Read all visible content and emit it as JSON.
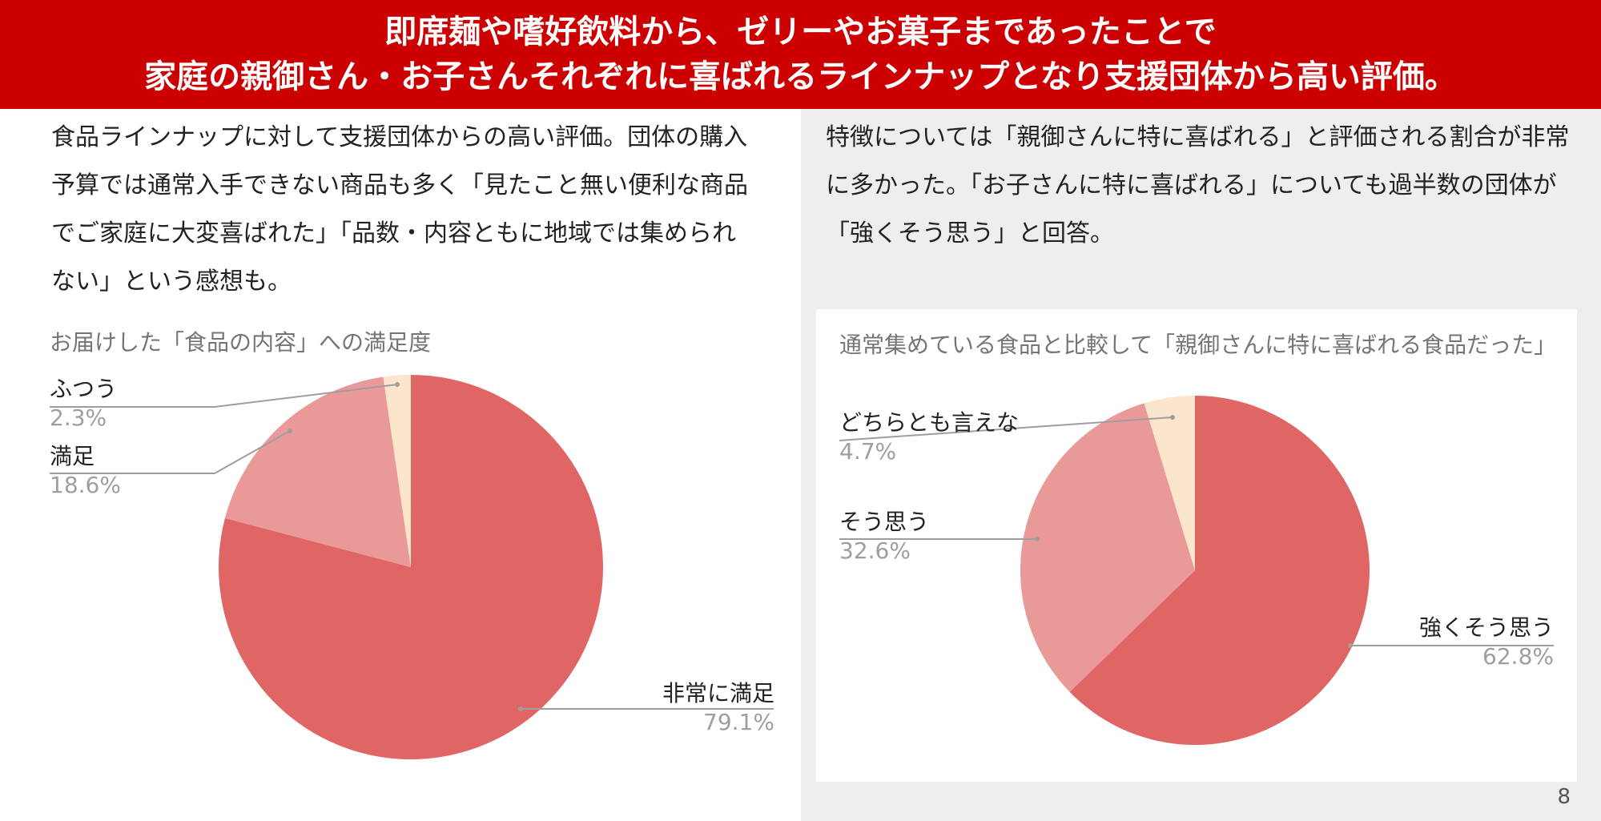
{
  "header": {
    "line1": "即席麺や嗜好飲料から、ゼリーやお菓子まであったことで",
    "line2": "家庭の親御さん・お子さんそれぞれに喜ばれるラインナップとなり支援団体から高い評価。"
  },
  "left_text": "食品ラインナップに対して支援団体からの高い評価。団体の購入予算では通常入手できない商品も多く「見たこと無い便利な商品でご家庭に大変喜ばれた」「品数・内容ともに地域では集められない」という感想も。",
  "right_text": "特徴については「親御さんに特に喜ばれる」と評価される割合が非常に多かった。「お子さんに特に喜ばれる」についても過半数の団体が「強くそう思う」と回答。",
  "page_number": "8",
  "chart_data": [
    {
      "type": "pie",
      "title": "お届けした「食品の内容」への満足度",
      "slices": [
        {
          "label": "非常に満足",
          "value": 79.1,
          "display": "79.1%",
          "color": "#e06666"
        },
        {
          "label": "満足",
          "value": 18.6,
          "display": "18.6%",
          "color": "#ea9999"
        },
        {
          "label": "ふつう",
          "value": 2.3,
          "display": "2.3%",
          "color": "#fce5cd"
        }
      ]
    },
    {
      "type": "pie",
      "title": "通常集めている食品と比較して「親御さんに特に喜ばれる食品だった」",
      "slices": [
        {
          "label": "強くそう思う",
          "value": 62.8,
          "display": "62.8%",
          "color": "#e06666"
        },
        {
          "label": "そう思う",
          "value": 32.6,
          "display": "32.6%",
          "color": "#ea9999"
        },
        {
          "label": "どちらとも言えな",
          "value": 4.7,
          "display": "4.7%",
          "color": "#fce5cd"
        }
      ]
    }
  ]
}
